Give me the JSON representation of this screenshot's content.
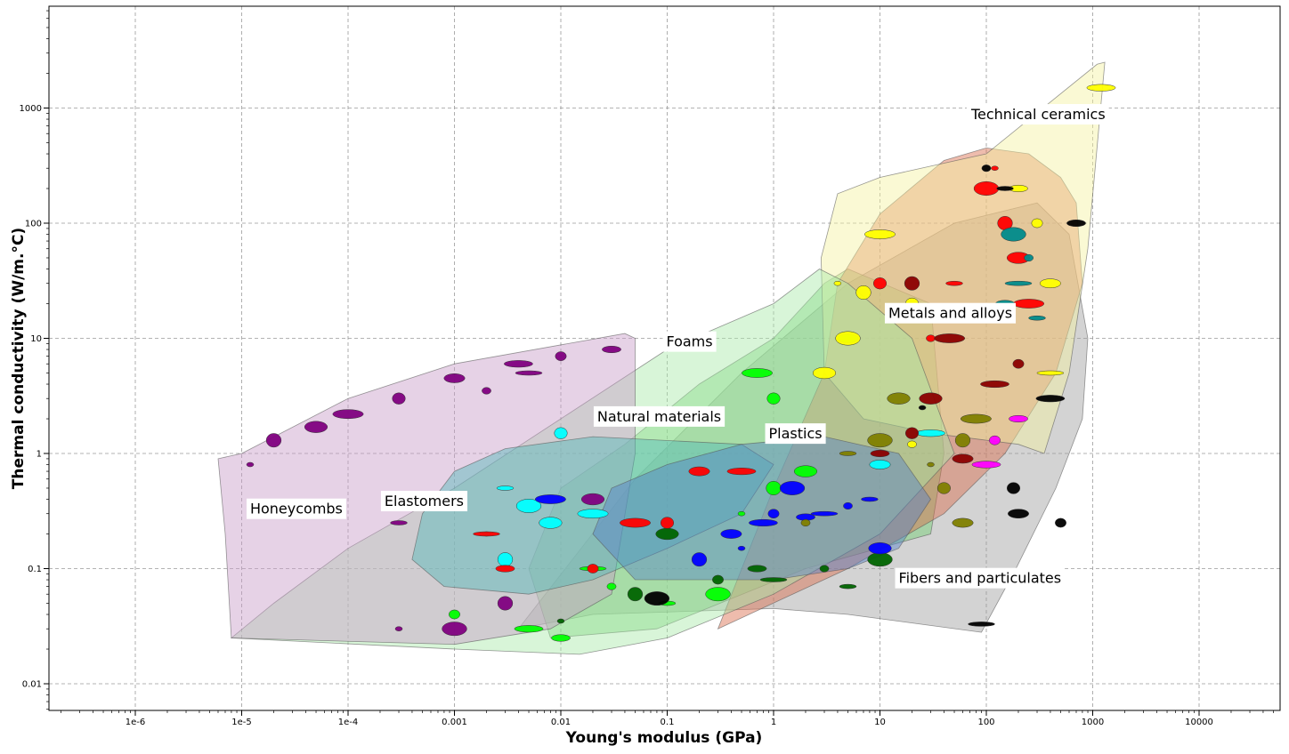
{
  "chart_data": {
    "type": "scatter",
    "title": "",
    "xlabel": "Young's modulus (GPa)",
    "ylabel": "Thermal conductivity (W/m.°C)",
    "xscale": "log",
    "yscale": "log",
    "xlim": [
      2e-07,
      50000.0
    ],
    "ylim": [
      0.005,
      5000
    ],
    "grid": true,
    "x_ticks": [
      {
        "v": 1e-06,
        "label": "1e-6"
      },
      {
        "v": 1e-05,
        "label": "1e-5"
      },
      {
        "v": 0.0001,
        "label": "1e-4"
      },
      {
        "v": 0.001,
        "label": "0.001"
      },
      {
        "v": 0.01,
        "label": "0.01"
      },
      {
        "v": 0.1,
        "label": "0.1"
      },
      {
        "v": 1,
        "label": "1"
      },
      {
        "v": 10,
        "label": "10"
      },
      {
        "v": 100,
        "label": "100"
      },
      {
        "v": 1000,
        "label": "1000"
      },
      {
        "v": 10000,
        "label": "10000"
      }
    ],
    "y_ticks": [
      {
        "v": 0.01,
        "label": "0.01"
      },
      {
        "v": 0.1,
        "label": "0.1"
      },
      {
        "v": 1,
        "label": "1"
      },
      {
        "v": 10,
        "label": "10"
      },
      {
        "v": 100,
        "label": "100"
      },
      {
        "v": 1000,
        "label": "1000"
      }
    ],
    "regions": [
      {
        "name": "Fibers and particulates",
        "color": "#9e9e9e",
        "label_pos": [
          15,
          0.075
        ],
        "hull": [
          [
            0.004,
            0.03
          ],
          [
            0.02,
            0.04
          ],
          [
            1,
            0.045
          ],
          [
            5,
            0.04
          ],
          [
            90,
            0.028
          ],
          [
            190,
            0.1
          ],
          [
            450,
            0.5
          ],
          [
            800,
            2
          ],
          [
            900,
            10
          ],
          [
            600,
            80
          ],
          [
            300,
            150
          ],
          [
            50,
            100
          ],
          [
            5,
            30
          ],
          [
            0.5,
            5
          ],
          [
            0.05,
            0.6
          ]
        ]
      },
      {
        "name": "Natural materials",
        "color": "#6fce6f",
        "label_pos": [
          0.022,
          1.9
        ],
        "hull": [
          [
            0.008,
            0.025
          ],
          [
            0.08,
            0.03
          ],
          [
            2,
            0.1
          ],
          [
            30,
            0.2
          ],
          [
            40,
            1
          ],
          [
            30,
            20
          ],
          [
            5,
            40
          ],
          [
            3,
            30
          ],
          [
            1,
            10
          ],
          [
            0.2,
            4
          ],
          [
            0.04,
            1.2
          ],
          [
            0.01,
            0.5
          ],
          [
            0.005,
            0.1
          ]
        ]
      },
      {
        "name": "Metals and alloys",
        "color": "#d96a4a",
        "label_pos": [
          12,
          15
        ],
        "hull": [
          [
            0.3,
            0.03
          ],
          [
            5,
            0.1
          ],
          [
            40,
            0.3
          ],
          [
            150,
            1
          ],
          [
            450,
            5
          ],
          [
            800,
            30
          ],
          [
            700,
            150
          ],
          [
            500,
            250
          ],
          [
            250,
            400
          ],
          [
            100,
            450
          ],
          [
            40,
            350
          ],
          [
            10,
            120
          ],
          [
            4,
            30
          ],
          [
            3,
            5
          ],
          [
            1,
            0.5
          ]
        ]
      },
      {
        "name": "Technical ceramics",
        "color": "#f5f2a0",
        "label_pos": [
          72,
          800
        ],
        "hull": [
          [
            3,
            5
          ],
          [
            7,
            2
          ],
          [
            30,
            1.5
          ],
          [
            200,
            1.2
          ],
          [
            350,
            1
          ],
          [
            600,
            5
          ],
          [
            900,
            60
          ],
          [
            1300,
            2500
          ],
          [
            1100,
            2400
          ],
          [
            100,
            400
          ],
          [
            10,
            250
          ],
          [
            4,
            180
          ],
          [
            2.8,
            50
          ]
        ]
      },
      {
        "name": "Foams",
        "color": "#a8e8a8",
        "label_pos": [
          0.098,
          8.5
        ],
        "hull": [
          [
            8e-06,
            0.025
          ],
          [
            0.001,
            0.02
          ],
          [
            0.015,
            0.018
          ],
          [
            0.1,
            0.025
          ],
          [
            1,
            0.06
          ],
          [
            10,
            0.2
          ],
          [
            50,
            1
          ],
          [
            20,
            10
          ],
          [
            5,
            30
          ],
          [
            2.7,
            40
          ],
          [
            1,
            20
          ],
          [
            0.1,
            8
          ],
          [
            0.01,
            2
          ],
          [
            0.001,
            0.5
          ],
          [
            0.0001,
            0.15
          ],
          [
            2e-05,
            0.05
          ]
        ]
      },
      {
        "name": "Honeycombs",
        "color": "#c89bc8",
        "label_pos": [
          1.2e-05,
          0.3
        ],
        "hull": [
          [
            8e-06,
            0.025
          ],
          [
            0.001,
            0.022
          ],
          [
            0.008,
            0.03
          ],
          [
            0.03,
            0.06
          ],
          [
            0.05,
            1
          ],
          [
            0.05,
            10
          ],
          [
            0.04,
            11
          ],
          [
            0.001,
            6
          ],
          [
            0.0001,
            3
          ],
          [
            1e-05,
            1
          ],
          [
            6e-06,
            0.9
          ],
          [
            7e-06,
            0.2
          ]
        ]
      },
      {
        "name": "Elastomers",
        "color": "#4fb8b8",
        "label_pos": [
          0.00022,
          0.35
        ],
        "hull": [
          [
            0.0008,
            0.07
          ],
          [
            0.005,
            0.06
          ],
          [
            0.02,
            0.08
          ],
          [
            0.1,
            0.15
          ],
          [
            0.5,
            0.3
          ],
          [
            1,
            0.8
          ],
          [
            0.5,
            1.2
          ],
          [
            0.02,
            1.4
          ],
          [
            0.003,
            1.1
          ],
          [
            0.001,
            0.7
          ],
          [
            0.0005,
            0.3
          ],
          [
            0.0004,
            0.12
          ]
        ]
      },
      {
        "name": "Plastics",
        "color": "#5580c8",
        "label_pos": [
          0.9,
          1.35
        ],
        "hull": [
          [
            0.05,
            0.08
          ],
          [
            1,
            0.08
          ],
          [
            5,
            0.1
          ],
          [
            15,
            0.15
          ],
          [
            30,
            0.4
          ],
          [
            15,
            1
          ],
          [
            3,
            1.4
          ],
          [
            0.5,
            1.2
          ],
          [
            0.1,
            0.8
          ],
          [
            0.03,
            0.5
          ],
          [
            0.02,
            0.2
          ]
        ]
      }
    ],
    "series": [
      {
        "color": "#800080",
        "points": [
          [
            1.2e-05,
            0.8
          ],
          [
            2e-05,
            1.3
          ],
          [
            5e-05,
            1.7
          ],
          [
            0.0001,
            2.2
          ],
          [
            0.0003,
            3
          ],
          [
            0.001,
            4.5
          ],
          [
            0.004,
            6
          ],
          [
            0.01,
            7
          ],
          [
            0.03,
            8
          ],
          [
            0.005,
            5
          ],
          [
            0.002,
            3.5
          ],
          [
            0.0003,
            0.25
          ],
          [
            0.001,
            0.03
          ],
          [
            0.0003,
            0.03
          ],
          [
            0.003,
            0.05
          ],
          [
            0.02,
            0.4
          ]
        ]
      },
      {
        "color": "#00ffff",
        "points": [
          [
            0.003,
            0.5
          ],
          [
            0.005,
            0.35
          ],
          [
            0.002,
            0.2
          ],
          [
            0.003,
            0.12
          ],
          [
            0.008,
            0.25
          ],
          [
            0.02,
            0.3
          ],
          [
            0.01,
            1.5
          ],
          [
            10,
            0.8
          ],
          [
            30,
            1.5
          ]
        ]
      },
      {
        "color": "#00ff00",
        "points": [
          [
            0.02,
            0.1
          ],
          [
            0.03,
            0.07
          ],
          [
            0.1,
            0.05
          ],
          [
            0.3,
            0.06
          ],
          [
            0.5,
            0.3
          ],
          [
            1,
            0.5
          ],
          [
            2,
            0.7
          ],
          [
            0.7,
            5
          ],
          [
            1,
            3
          ],
          [
            5,
            10
          ],
          [
            0.005,
            0.03
          ],
          [
            0.001,
            0.04
          ],
          [
            0.01,
            0.025
          ]
        ]
      },
      {
        "color": "#006400",
        "points": [
          [
            0.3,
            0.08
          ],
          [
            0.7,
            0.1
          ],
          [
            1,
            0.08
          ],
          [
            3,
            0.1
          ],
          [
            5,
            0.07
          ],
          [
            10,
            0.12
          ],
          [
            0.01,
            0.035
          ],
          [
            0.05,
            0.06
          ],
          [
            0.1,
            0.2
          ]
        ]
      },
      {
        "color": "#0000ff",
        "points": [
          [
            0.4,
            0.2
          ],
          [
            0.8,
            0.25
          ],
          [
            1,
            0.3
          ],
          [
            2,
            0.28
          ],
          [
            3,
            0.3
          ],
          [
            5,
            0.35
          ],
          [
            8,
            0.4
          ],
          [
            1.5,
            0.5
          ],
          [
            0.5,
            0.15
          ],
          [
            0.2,
            0.12
          ],
          [
            10,
            0.15
          ],
          [
            0.008,
            0.4
          ]
        ]
      },
      {
        "color": "#ff0000",
        "points": [
          [
            0.05,
            0.25
          ],
          [
            0.1,
            0.25
          ],
          [
            0.2,
            0.7
          ],
          [
            0.5,
            0.7
          ],
          [
            0.02,
            0.1
          ],
          [
            0.003,
            0.1
          ],
          [
            0.002,
            0.2
          ],
          [
            30,
            10
          ],
          [
            50,
            30
          ],
          [
            100,
            200
          ],
          [
            120,
            300
          ],
          [
            150,
            100
          ],
          [
            200,
            50
          ],
          [
            250,
            20
          ],
          [
            10,
            30
          ],
          [
            20,
            15
          ]
        ]
      },
      {
        "color": "#8b0000",
        "points": [
          [
            20,
            30
          ],
          [
            30,
            3
          ],
          [
            45,
            10
          ],
          [
            20,
            1.5
          ],
          [
            60,
            0.9
          ],
          [
            120,
            4
          ],
          [
            200,
            6
          ],
          [
            10,
            1
          ]
        ]
      },
      {
        "color": "#ffff00",
        "points": [
          [
            5,
            10
          ],
          [
            4,
            30
          ],
          [
            7,
            25
          ],
          [
            3,
            5
          ],
          [
            10,
            80
          ],
          [
            20,
            20
          ],
          [
            400,
            30
          ],
          [
            1200,
            1500
          ],
          [
            300,
            100
          ],
          [
            200,
            200
          ],
          [
            400,
            5
          ],
          [
            20,
            1.2
          ]
        ]
      },
      {
        "color": "#808000",
        "points": [
          [
            2,
            0.25
          ],
          [
            5,
            1
          ],
          [
            10,
            1.3
          ],
          [
            30,
            0.8
          ],
          [
            60,
            1.3
          ],
          [
            15,
            3
          ],
          [
            80,
            2
          ],
          [
            40,
            0.5
          ],
          [
            60,
            0.25
          ]
        ]
      },
      {
        "color": "#008b8b",
        "points": [
          [
            150,
            20
          ],
          [
            200,
            30
          ],
          [
            250,
            50
          ],
          [
            300,
            15
          ],
          [
            180,
            80
          ]
        ]
      },
      {
        "color": "#ff00ff",
        "points": [
          [
            100,
            0.8
          ],
          [
            120,
            1.3
          ],
          [
            200,
            2
          ]
        ]
      },
      {
        "color": "#000000",
        "points": [
          [
            180,
            0.5
          ],
          [
            200,
            0.3
          ],
          [
            400,
            3
          ],
          [
            500,
            0.25
          ],
          [
            700,
            100
          ],
          [
            90,
            0.033
          ],
          [
            100,
            300
          ],
          [
            150,
            200
          ],
          [
            0.08,
            0.055
          ],
          [
            25,
            2.5
          ]
        ]
      }
    ]
  }
}
